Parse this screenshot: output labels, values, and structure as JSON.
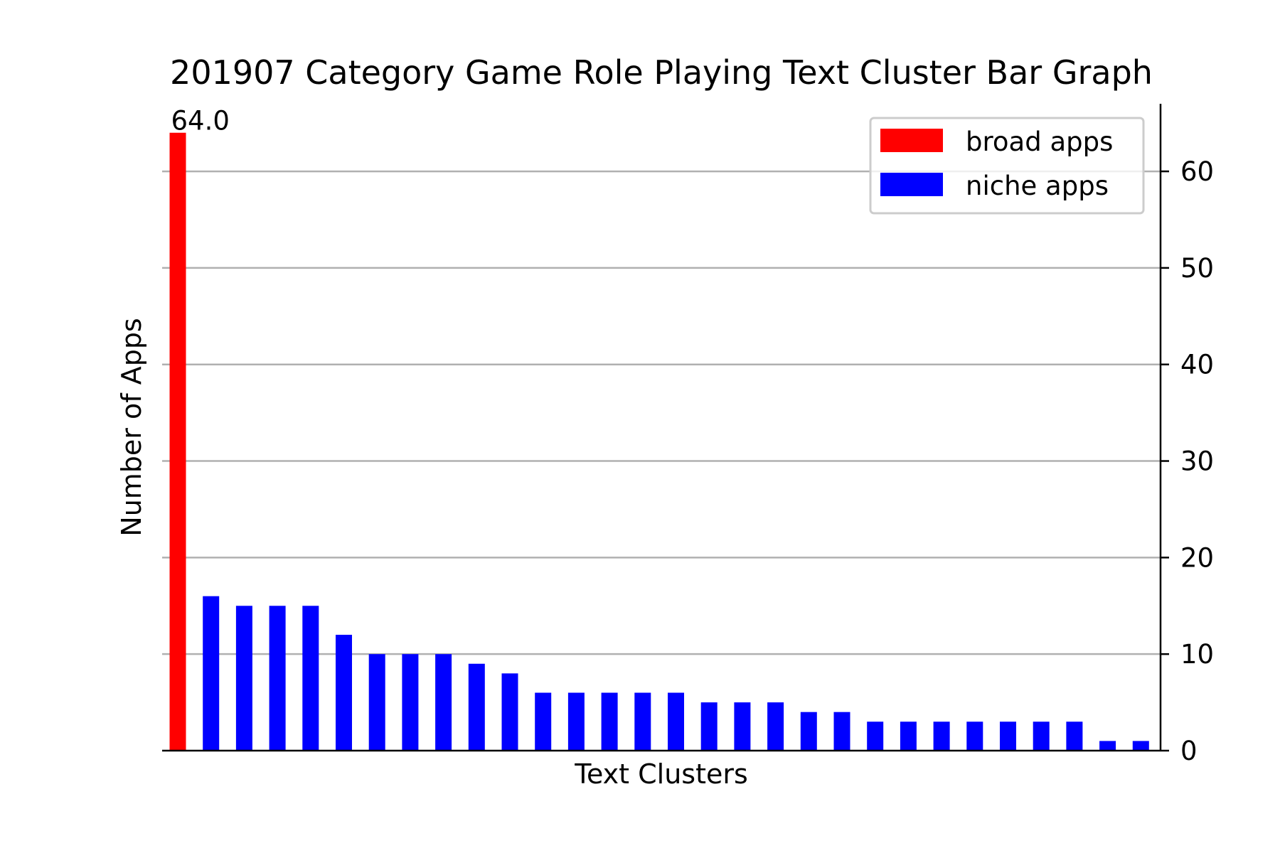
{
  "chart_data": {
    "type": "bar",
    "title": "201907 Category Game Role Playing Text Cluster Bar Graph",
    "xlabel": "Text Clusters",
    "ylabel": "Number of Apps",
    "ylim": [
      0,
      67
    ],
    "yticks": [
      0,
      10,
      20,
      30,
      40,
      50,
      60
    ],
    "grid": "horizontal",
    "y_axis_side": "right",
    "legend_position": "top-right",
    "series": [
      {
        "name": "broad apps",
        "color": "#ff0000",
        "values": [
          64
        ]
      },
      {
        "name": "niche apps",
        "color": "#0000ff",
        "values": [
          16,
          15,
          15,
          15,
          12,
          10,
          10,
          10,
          9,
          8,
          6,
          6,
          6,
          6,
          6,
          5,
          5,
          5,
          4,
          4,
          3,
          3,
          3,
          3,
          3,
          3,
          3,
          1,
          1
        ]
      }
    ],
    "annotations": [
      {
        "series": "broad apps",
        "index": 0,
        "text": "64.0"
      }
    ]
  }
}
